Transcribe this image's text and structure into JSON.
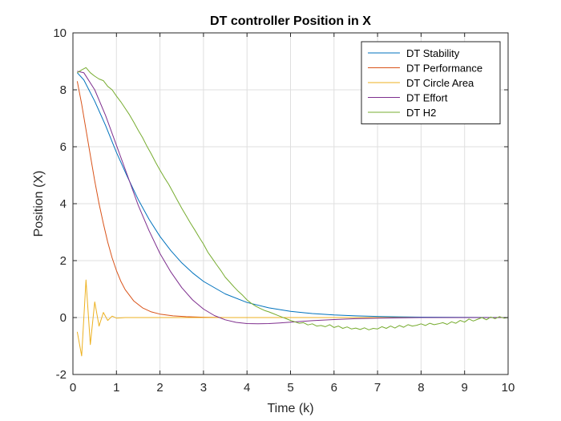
{
  "chart_data": {
    "type": "line",
    "title": "DT controller Position in X",
    "xlabel": "Time (k)",
    "ylabel": "Position (X)",
    "xlim": [
      0,
      10
    ],
    "ylim": [
      -2,
      10
    ],
    "xticks": [
      0,
      1,
      2,
      3,
      4,
      5,
      6,
      7,
      8,
      9,
      10
    ],
    "yticks": [
      -2,
      0,
      2,
      4,
      6,
      8,
      10
    ],
    "grid": true,
    "legend_position": "top-right",
    "series": [
      {
        "name": "DT Stability",
        "color": "#0072BD",
        "x": [
          0.1,
          0.25,
          0.5,
          0.75,
          1.0,
          1.25,
          1.5,
          1.75,
          2.0,
          2.25,
          2.5,
          2.75,
          3.0,
          3.5,
          4.0,
          4.5,
          5.0,
          5.5,
          6.0,
          6.5,
          7.0,
          7.5,
          8.0,
          8.5,
          9.0,
          9.5,
          10.0
        ],
        "y": [
          8.6,
          8.35,
          7.6,
          6.75,
          5.8,
          4.95,
          4.15,
          3.45,
          2.85,
          2.35,
          1.92,
          1.57,
          1.27,
          0.83,
          0.53,
          0.34,
          0.22,
          0.14,
          0.09,
          0.06,
          0.04,
          0.025,
          0.015,
          0.01,
          0.005,
          0.003,
          0.0
        ]
      },
      {
        "name": "DT Performance",
        "color": "#D95319",
        "x": [
          0.1,
          0.2,
          0.3,
          0.4,
          0.5,
          0.6,
          0.7,
          0.8,
          0.9,
          1.0,
          1.1,
          1.2,
          1.4,
          1.6,
          1.8,
          2.0,
          2.3,
          2.6,
          3.0,
          3.5,
          4.0,
          5.0,
          6.0,
          8.0,
          10.0
        ],
        "y": [
          8.3,
          7.5,
          6.6,
          5.7,
          4.8,
          4.0,
          3.3,
          2.65,
          2.1,
          1.65,
          1.28,
          0.98,
          0.58,
          0.34,
          0.2,
          0.12,
          0.06,
          0.03,
          0.01,
          0.0,
          0.0,
          0.0,
          0.0,
          0.0,
          0.0
        ]
      },
      {
        "name": "DT Circle Area",
        "color": "#EDB120",
        "x": [
          0.1,
          0.2,
          0.3,
          0.4,
          0.5,
          0.6,
          0.7,
          0.8,
          0.9,
          1.0,
          1.2,
          1.5,
          2.0,
          3.0,
          4.0,
          5.0,
          6.0,
          7.0,
          8.0,
          9.0,
          10.0
        ],
        "y": [
          -0.5,
          -1.35,
          1.32,
          -0.95,
          0.55,
          -0.3,
          0.18,
          -0.1,
          0.05,
          -0.02,
          0.0,
          0.0,
          0.0,
          0.0,
          0.0,
          0.0,
          0.0,
          0.0,
          0.0,
          0.0,
          0.0
        ]
      },
      {
        "name": "DT Effort",
        "color": "#7E2F8E",
        "x": [
          0.1,
          0.25,
          0.5,
          0.75,
          1.0,
          1.25,
          1.5,
          1.75,
          2.0,
          2.25,
          2.5,
          2.75,
          3.0,
          3.25,
          3.5,
          3.75,
          4.0,
          4.25,
          4.5,
          4.75,
          5.0,
          5.5,
          6.0,
          6.5,
          7.0,
          7.5,
          8.0,
          8.5,
          9.0,
          10.0
        ],
        "y": [
          8.65,
          8.6,
          8.0,
          7.1,
          6.05,
          5.0,
          3.95,
          3.05,
          2.25,
          1.6,
          1.05,
          0.62,
          0.3,
          0.07,
          -0.08,
          -0.17,
          -0.21,
          -0.22,
          -0.21,
          -0.19,
          -0.16,
          -0.11,
          -0.07,
          -0.04,
          -0.02,
          -0.01,
          0.0,
          0.0,
          0.0,
          0.0
        ]
      },
      {
        "name": "DT H2",
        "color": "#77AC30",
        "x": [
          0.1,
          0.2,
          0.3,
          0.4,
          0.5,
          0.6,
          0.7,
          0.8,
          0.9,
          1.0,
          1.1,
          1.2,
          1.3,
          1.4,
          1.5,
          1.6,
          1.7,
          1.8,
          1.9,
          2.0,
          2.1,
          2.2,
          2.3,
          2.4,
          2.5,
          2.6,
          2.7,
          2.8,
          2.9,
          3.0,
          3.1,
          3.2,
          3.3,
          3.4,
          3.5,
          3.6,
          3.7,
          3.8,
          3.9,
          4.0,
          4.1,
          4.2,
          4.3,
          4.4,
          4.5,
          4.6,
          4.7,
          4.8,
          4.9,
          5.0,
          5.1,
          5.2,
          5.3,
          5.4,
          5.5,
          5.6,
          5.7,
          5.8,
          5.9,
          6.0,
          6.1,
          6.2,
          6.3,
          6.4,
          6.5,
          6.6,
          6.7,
          6.8,
          6.9,
          7.0,
          7.1,
          7.2,
          7.3,
          7.4,
          7.5,
          7.6,
          7.7,
          7.8,
          7.9,
          8.0,
          8.1,
          8.2,
          8.3,
          8.4,
          8.5,
          8.6,
          8.7,
          8.8,
          8.9,
          9.0,
          9.1,
          9.2,
          9.3,
          9.4,
          9.5,
          9.6,
          9.7,
          9.8,
          9.9,
          10.0
        ],
        "y": [
          8.6,
          8.7,
          8.78,
          8.6,
          8.48,
          8.38,
          8.32,
          8.12,
          8.0,
          7.78,
          7.58,
          7.35,
          7.12,
          6.86,
          6.58,
          6.32,
          6.02,
          5.75,
          5.45,
          5.18,
          4.92,
          4.68,
          4.4,
          4.12,
          3.84,
          3.58,
          3.32,
          3.08,
          2.82,
          2.58,
          2.3,
          2.08,
          1.86,
          1.65,
          1.42,
          1.25,
          1.08,
          0.92,
          0.78,
          0.62,
          0.5,
          0.4,
          0.32,
          0.25,
          0.2,
          0.14,
          0.08,
          0.02,
          -0.04,
          -0.1,
          -0.15,
          -0.2,
          -0.18,
          -0.26,
          -0.22,
          -0.3,
          -0.28,
          -0.32,
          -0.25,
          -0.35,
          -0.3,
          -0.38,
          -0.33,
          -0.4,
          -0.37,
          -0.42,
          -0.36,
          -0.43,
          -0.38,
          -0.4,
          -0.32,
          -0.38,
          -0.3,
          -0.37,
          -0.28,
          -0.34,
          -0.25,
          -0.3,
          -0.27,
          -0.22,
          -0.28,
          -0.2,
          -0.25,
          -0.22,
          -0.18,
          -0.24,
          -0.15,
          -0.2,
          -0.1,
          -0.16,
          -0.05,
          -0.12,
          -0.06,
          0.0,
          -0.08,
          0.02,
          -0.04,
          0.03,
          -0.02,
          0.0
        ]
      }
    ]
  }
}
